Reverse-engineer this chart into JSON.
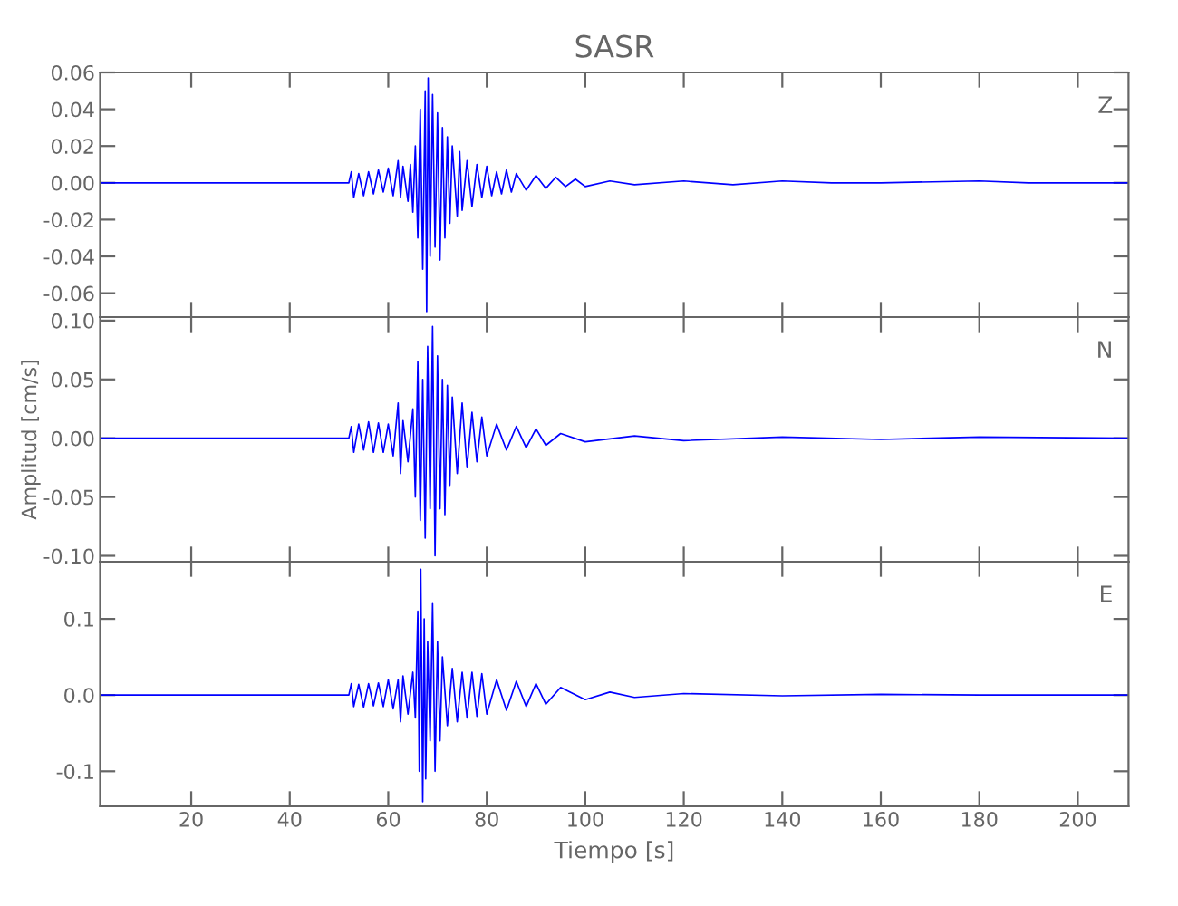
{
  "chart_data": [
    {
      "type": "line",
      "title": "SASR",
      "annotations": [
        "Z"
      ],
      "xlim": [
        1.5,
        210.3
      ],
      "xticks": [
        20,
        40,
        60,
        80,
        100,
        120,
        140,
        160,
        180,
        200
      ],
      "tick_labels": "y",
      "ylim": [
        -0.073,
        0.06
      ],
      "yticks": [
        {
          "value": -0.06,
          "label": "-0.06"
        },
        {
          "value": -0.04,
          "label": "-0.04"
        },
        {
          "value": -0.02,
          "label": "-0.02"
        },
        {
          "value": 0,
          "label": "0.00"
        },
        {
          "value": 0.02,
          "label": "0.02"
        },
        {
          "value": 0.04,
          "label": "0.04"
        },
        {
          "value": 0.06,
          "label": "0.06"
        }
      ],
      "series": [
        {
          "color": "#0000ff",
          "x": [
            1.5,
            52,
            52.5,
            53,
            54,
            55,
            56,
            57,
            58,
            59,
            60,
            61,
            62,
            62.5,
            63,
            64,
            64.5,
            65,
            65.5,
            66,
            66.5,
            67,
            67.5,
            67.8,
            68.1,
            68.5,
            69,
            69.5,
            70,
            70.5,
            71,
            71.5,
            72,
            72.5,
            73,
            74,
            74.5,
            75,
            76,
            77,
            78,
            79,
            80,
            81,
            82,
            83,
            84,
            85,
            86,
            88,
            90,
            92,
            94,
            96,
            98,
            100,
            105,
            110,
            120,
            130,
            140,
            150,
            160,
            180,
            190,
            210.3
          ],
          "values": [
            0,
            0,
            0.006,
            -0.008,
            0.005,
            -0.007,
            0.006,
            -0.006,
            0.007,
            -0.005,
            0.008,
            -0.007,
            0.012,
            -0.008,
            0.009,
            -0.01,
            0.01,
            -0.016,
            0.02,
            -0.03,
            0.04,
            -0.047,
            0.05,
            -0.07,
            0.057,
            -0.04,
            0.048,
            -0.035,
            0.038,
            -0.042,
            0.03,
            -0.03,
            0.025,
            -0.022,
            0.02,
            -0.018,
            0.017,
            -0.015,
            0.012,
            -0.013,
            0.01,
            -0.008,
            0.009,
            -0.007,
            0.006,
            -0.006,
            0.007,
            -0.005,
            0.005,
            -0.004,
            0.004,
            -0.003,
            0.003,
            -0.002,
            0.002,
            -0.002,
            0.001,
            -0.001,
            0.001,
            -0.001,
            0.001,
            0,
            0,
            0.001,
            0,
            0
          ]
        }
      ]
    },
    {
      "type": "line",
      "ylabel": "Amplitud [cm/s]",
      "annotations": [
        "N"
      ],
      "xlim": [
        1.5,
        210.3
      ],
      "xticks": [
        20,
        40,
        60,
        80,
        100,
        120,
        140,
        160,
        180,
        200
      ],
      "tick_labels": "y",
      "ylim": [
        -0.105,
        0.103
      ],
      "yticks": [
        {
          "value": -0.1,
          "label": "-0.10"
        },
        {
          "value": -0.05,
          "label": "-0.05"
        },
        {
          "value": 0,
          "label": "0.00"
        },
        {
          "value": 0.05,
          "label": "0.05"
        },
        {
          "value": 0.1,
          "label": "0.10"
        }
      ],
      "series": [
        {
          "color": "#0000ff",
          "x": [
            1.5,
            52,
            52.5,
            53,
            54,
            55,
            56,
            57,
            58,
            59,
            60,
            61,
            62,
            62.5,
            63,
            64,
            65,
            65.5,
            66,
            66.5,
            67,
            67.5,
            68,
            68.5,
            69,
            69.5,
            70,
            70.5,
            71,
            71.5,
            72,
            72.5,
            73,
            74,
            75,
            76,
            77,
            78,
            79,
            80,
            82,
            84,
            86,
            88,
            90,
            92,
            95,
            100,
            110,
            120,
            140,
            160,
            180,
            210.3
          ],
          "values": [
            0,
            0,
            0.01,
            -0.012,
            0.012,
            -0.01,
            0.014,
            -0.012,
            0.013,
            -0.012,
            0.012,
            -0.015,
            0.03,
            -0.03,
            0.015,
            -0.02,
            0.025,
            -0.05,
            0.065,
            -0.07,
            0.05,
            -0.085,
            0.078,
            -0.06,
            0.095,
            -0.1,
            0.07,
            -0.06,
            0.05,
            -0.065,
            0.045,
            -0.04,
            0.035,
            -0.03,
            0.03,
            -0.025,
            0.022,
            -0.02,
            0.018,
            -0.015,
            0.012,
            -0.01,
            0.01,
            -0.008,
            0.008,
            -0.006,
            0.004,
            -0.003,
            0.002,
            -0.002,
            0.001,
            -0.001,
            0.001,
            0
          ]
        }
      ]
    },
    {
      "type": "line",
      "xlabel": "Tiempo [s]",
      "annotations": [
        "E"
      ],
      "xlim": [
        1.5,
        210.3
      ],
      "xticks": [
        20,
        40,
        60,
        80,
        100,
        120,
        140,
        160,
        180,
        200
      ],
      "ylim": [
        -0.146,
        0.175
      ],
      "yticks": [
        {
          "value": -0.1,
          "label": "-0.1"
        },
        {
          "value": 0,
          "label": "0.0"
        },
        {
          "value": 0.1,
          "label": "0.1"
        }
      ],
      "series": [
        {
          "color": "#0000ff",
          "x": [
            1.5,
            52,
            52.5,
            53,
            54,
            55,
            56,
            57,
            58,
            59,
            60,
            61,
            62,
            62.5,
            63,
            64,
            65,
            65.5,
            66,
            66.3,
            66.6,
            67,
            67.3,
            67.6,
            68,
            68.5,
            69,
            69.5,
            70,
            70.5,
            71,
            72,
            73,
            74,
            75,
            76,
            77,
            78,
            79,
            80,
            82,
            84,
            86,
            88,
            90,
            92,
            95,
            100,
            105,
            110,
            120,
            140,
            160,
            180,
            210.3
          ],
          "values": [
            0,
            0,
            0.015,
            -0.015,
            0.014,
            -0.016,
            0.015,
            -0.014,
            0.016,
            -0.015,
            0.02,
            -0.018,
            0.02,
            -0.035,
            0.025,
            -0.025,
            0.03,
            -0.03,
            0.11,
            -0.1,
            0.165,
            -0.14,
            0.1,
            -0.11,
            0.07,
            -0.06,
            0.12,
            -0.1,
            0.07,
            -0.06,
            0.05,
            -0.04,
            0.035,
            -0.035,
            0.03,
            -0.03,
            0.03,
            -0.028,
            0.028,
            -0.025,
            0.02,
            -0.02,
            0.018,
            -0.015,
            0.015,
            -0.012,
            0.01,
            -0.006,
            0.004,
            -0.003,
            0.002,
            -0.001,
            0.001,
            0,
            0
          ]
        }
      ]
    }
  ]
}
